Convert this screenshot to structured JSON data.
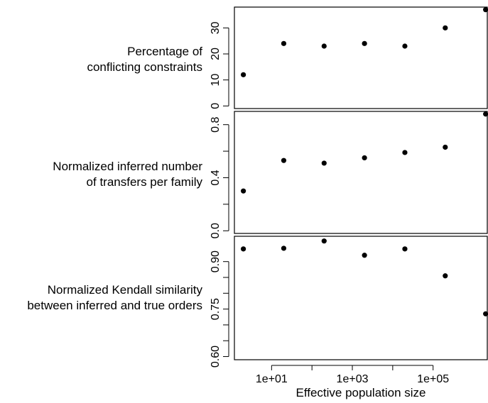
{
  "chart_data": [
    {
      "type": "scatter",
      "title_lines": [
        "Percentage of",
        "conflicting constraints"
      ],
      "xscale": "log10",
      "x": [
        2,
        20,
        200,
        2000,
        20000,
        200000,
        2000000
      ],
      "y": [
        12,
        24,
        23,
        24,
        23,
        30,
        37
      ],
      "ylim": [
        -1,
        38
      ],
      "yticks": [
        0,
        10,
        20,
        30
      ],
      "ytick_labels": [
        "0",
        "10",
        "20",
        "30"
      ],
      "minor_ticks": []
    },
    {
      "type": "scatter",
      "title_lines": [
        "Normalized inferred number",
        "of transfers per family"
      ],
      "xscale": "log10",
      "x": [
        2,
        20,
        200,
        2000,
        20000,
        200000,
        2000000
      ],
      "y": [
        0.3,
        0.53,
        0.51,
        0.55,
        0.59,
        0.63,
        0.88
      ],
      "ylim": [
        -0.02,
        0.9
      ],
      "yticks": [
        0.0,
        0.4,
        0.8
      ],
      "ytick_labels": [
        "0.0",
        "0.4",
        "0.8"
      ],
      "minor_ticks": [
        0.2,
        0.6
      ]
    },
    {
      "type": "scatter",
      "title_lines": [
        "Normalized Kendall similarity",
        "between inferred and true orders"
      ],
      "xscale": "log10",
      "x": [
        2,
        20,
        200,
        2000,
        20000,
        200000,
        2000000
      ],
      "y": [
        0.94,
        0.942,
        0.965,
        0.92,
        0.94,
        0.855,
        0.735
      ],
      "ylim": [
        0.59,
        0.98
      ],
      "yticks": [
        0.6,
        0.75,
        0.9
      ],
      "ytick_labels": [
        "0.60",
        "0.75",
        "0.90"
      ],
      "minor_ticks": [
        0.65,
        0.7,
        0.8,
        0.85
      ]
    }
  ],
  "x_axis": {
    "label": "Effective population size",
    "ticks": [
      10,
      1000,
      100000
    ],
    "tick_labels": [
      "1e+01",
      "1e+03",
      "1e+05"
    ],
    "minor_ticks": [
      100,
      10000
    ]
  },
  "colors": {
    "points": "#000000",
    "axes": "#000000"
  }
}
